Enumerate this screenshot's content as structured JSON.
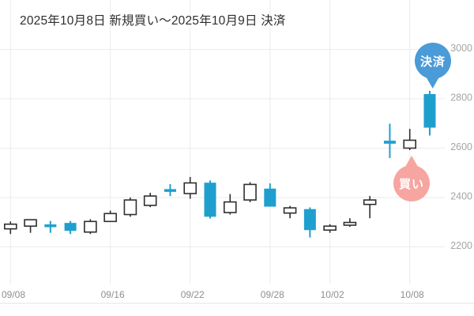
{
  "title": "2025年10月8日 新規買い〜2025年10月9日 決済",
  "markers": {
    "settle": {
      "label": "決済",
      "color": "#4a9bd8"
    },
    "buy": {
      "label": "買い",
      "color": "#f7a5a0"
    }
  },
  "chart_data": {
    "type": "candlestick",
    "title": "2025年10月8日 新規買い〜2025年10月9日 決済",
    "ylim": [
      2150,
      3050
    ],
    "y_ticks": [
      2200,
      2400,
      2600,
      2800,
      3000
    ],
    "x_ticks": [
      {
        "index": 0,
        "label": "09/08"
      },
      {
        "index": 5,
        "label": "09/16"
      },
      {
        "index": 9,
        "label": "09/22"
      },
      {
        "index": 13,
        "label": "09/28"
      },
      {
        "index": 16,
        "label": "10/02"
      },
      {
        "index": 20,
        "label": "10/08"
      }
    ],
    "candles": [
      {
        "open": 2273,
        "high": 2303,
        "low": 2252,
        "close": 2292,
        "dir": "up"
      },
      {
        "open": 2284,
        "high": 2310,
        "low": 2257,
        "close": 2310,
        "dir": "up"
      },
      {
        "open": 2291,
        "high": 2305,
        "low": 2257,
        "close": 2287,
        "dir": "down"
      },
      {
        "open": 2297,
        "high": 2305,
        "low": 2252,
        "close": 2265,
        "dir": "down"
      },
      {
        "open": 2260,
        "high": 2312,
        "low": 2252,
        "close": 2303,
        "dir": "up"
      },
      {
        "open": 2303,
        "high": 2347,
        "low": 2303,
        "close": 2335,
        "dir": "up"
      },
      {
        "open": 2331,
        "high": 2400,
        "low": 2322,
        "close": 2390,
        "dir": "up"
      },
      {
        "open": 2368,
        "high": 2419,
        "low": 2361,
        "close": 2406,
        "dir": "up"
      },
      {
        "open": 2434,
        "high": 2454,
        "low": 2406,
        "close": 2429,
        "dir": "down"
      },
      {
        "open": 2416,
        "high": 2483,
        "low": 2395,
        "close": 2459,
        "dir": "up"
      },
      {
        "open": 2460,
        "high": 2469,
        "low": 2315,
        "close": 2322,
        "dir": "down"
      },
      {
        "open": 2339,
        "high": 2414,
        "low": 2331,
        "close": 2382,
        "dir": "up"
      },
      {
        "open": 2390,
        "high": 2462,
        "low": 2381,
        "close": 2453,
        "dir": "up"
      },
      {
        "open": 2436,
        "high": 2457,
        "low": 2363,
        "close": 2363,
        "dir": "down"
      },
      {
        "open": 2337,
        "high": 2366,
        "low": 2316,
        "close": 2358,
        "dir": "up"
      },
      {
        "open": 2353,
        "high": 2360,
        "low": 2238,
        "close": 2268,
        "dir": "down"
      },
      {
        "open": 2268,
        "high": 2292,
        "low": 2257,
        "close": 2284,
        "dir": "up"
      },
      {
        "open": 2288,
        "high": 2316,
        "low": 2281,
        "close": 2299,
        "dir": "up"
      },
      {
        "open": 2372,
        "high": 2406,
        "low": 2316,
        "close": 2390,
        "dir": "up"
      },
      {
        "open": 2630,
        "high": 2699,
        "low": 2560,
        "close": 2618,
        "dir": "down"
      },
      {
        "open": 2600,
        "high": 2678,
        "low": 2592,
        "close": 2632,
        "dir": "up"
      },
      {
        "open": 2819,
        "high": 2832,
        "low": 2651,
        "close": 2683,
        "dir": "down"
      }
    ],
    "annotations": [
      {
        "label": "決済",
        "candle_index": 21,
        "points_at": "high",
        "direction": "down",
        "color": "#4a9bd8"
      },
      {
        "label": "買い",
        "candle_index": 20,
        "points_at": "low",
        "direction": "up",
        "color": "#f7a5a0"
      }
    ],
    "colors": {
      "up_fill": "#ffffff",
      "up_stroke": "#2f2f2f",
      "down": "#1f9fce",
      "grid": "#ebebeb",
      "y_axis_text": "#a5a5a5",
      "x_axis_text": "#8f8f8f",
      "baseline": "#e0e0e0"
    },
    "legend": null,
    "grid": true
  }
}
